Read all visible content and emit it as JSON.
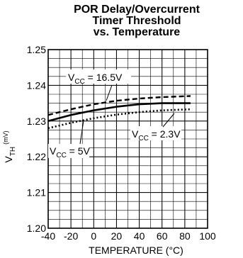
{
  "chart_data": {
    "type": "line",
    "title": [
      "POR Delay/Overcurrent",
      "Timer Threshold",
      "vs. Temperature"
    ],
    "xlabel": "TEMPERATURE (°C)",
    "ylabel_main": "V",
    "ylabel_sub": "TH",
    "ylabel_unit": "(mV)",
    "xlim": [
      -40,
      100
    ],
    "ylim": [
      1.2,
      1.25
    ],
    "x_ticks": [
      -40,
      -20,
      0,
      20,
      40,
      60,
      80,
      100
    ],
    "x_tick_labels": [
      "-40",
      "-20",
      "0",
      "20",
      "40",
      "60",
      "80",
      "100"
    ],
    "y_ticks": [
      1.2,
      1.21,
      1.22,
      1.23,
      1.24,
      1.25
    ],
    "y_tick_labels": [
      "1.20",
      "1.21",
      "1.22",
      "1.23",
      "1.24",
      "1.25"
    ],
    "grid": true,
    "x_minor_step": 10,
    "y_minor_step": 0.0025,
    "series": [
      {
        "name": "V_CC = 16.5V",
        "label_main": "V",
        "label_sub": "CC",
        "label_rest": " = 16.5V",
        "style": "dashed",
        "x": [
          -40,
          -20,
          0,
          20,
          40,
          60,
          85
        ],
        "y": [
          1.2317,
          1.2333,
          1.2347,
          1.2357,
          1.2363,
          1.2367,
          1.237
        ]
      },
      {
        "name": "V_CC = 5V",
        "label_main": "V",
        "label_sub": "CC",
        "label_rest": " = 5V",
        "style": "solid",
        "x": [
          -40,
          -20,
          0,
          20,
          40,
          60,
          85
        ],
        "y": [
          1.23,
          1.2317,
          1.233,
          1.234,
          1.2347,
          1.235,
          1.235
        ]
      },
      {
        "name": "V_CC = 2.3V",
        "label_main": "V",
        "label_sub": "CC",
        "label_rest": " = 2.3V",
        "style": "dotted",
        "x": [
          -40,
          -20,
          0,
          20,
          40,
          60,
          85
        ],
        "y": [
          1.228,
          1.2295,
          1.2308,
          1.2318,
          1.2325,
          1.233,
          1.2333
        ]
      }
    ]
  }
}
